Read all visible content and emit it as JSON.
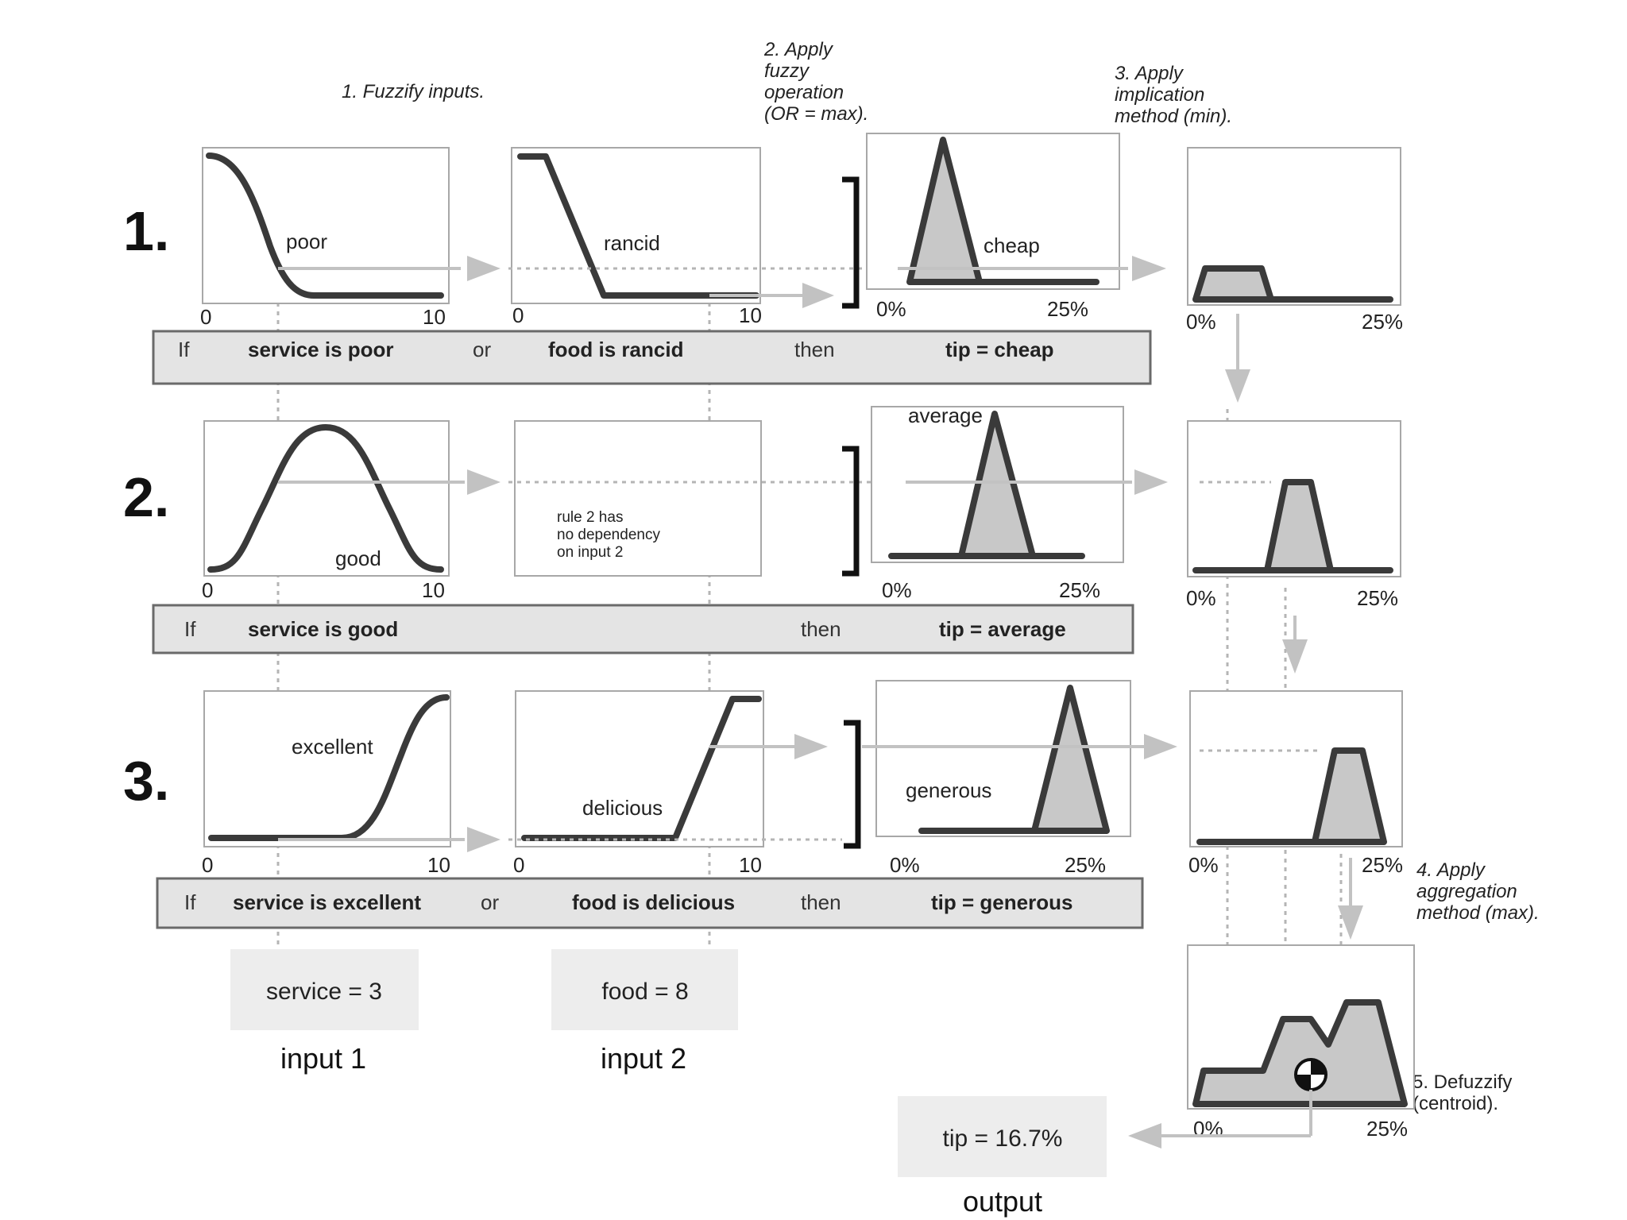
{
  "steps": {
    "s1": "1. Fuzzify inputs.",
    "s2": [
      "2. Apply",
      "fuzzy",
      "operation",
      "(OR = max)."
    ],
    "s3": [
      "3. Apply",
      "implication",
      "method (min)."
    ],
    "s4": [
      "4. Apply",
      "aggregation",
      "method (max)."
    ],
    "s5": [
      "5. Defuzzify",
      "(centroid)."
    ]
  },
  "rows": {
    "r1": {
      "number": "1.",
      "input1_mf": "poor",
      "input2_mf": "rancid",
      "output_mf": "cheap",
      "rule": {
        "if": "If",
        "part1": "service is poor",
        "op": "or",
        "part2": "food is rancid",
        "then": "then",
        "result": "tip = cheap"
      }
    },
    "r2": {
      "number": "2.",
      "input1_mf": "good",
      "note": [
        "rule 2 has",
        "no dependency",
        "on input 2"
      ],
      "output_mf": "average",
      "rule": {
        "if": "If",
        "part1": "service is good",
        "then": "then",
        "result": "tip = average"
      }
    },
    "r3": {
      "number": "3.",
      "input1_mf": "excellent",
      "input2_mf": "delicious",
      "output_mf": "generous",
      "rule": {
        "if": "If",
        "part1": "service is excellent",
        "op": "or",
        "part2": "food is delicious",
        "then": "then",
        "result": "tip = generous"
      }
    }
  },
  "ticks": {
    "in_min": "0",
    "in_max": "10",
    "out_min": "0%",
    "out_max": "25%"
  },
  "inputs": {
    "service": {
      "value_text": "service = 3",
      "caption": "input 1"
    },
    "food": {
      "value_text": "food = 8",
      "caption": "input 2"
    }
  },
  "output": {
    "value_text": "tip = 16.7%",
    "caption": "output"
  },
  "colors": {
    "curve": "#3a3a3a",
    "fill": "#c8c8c8",
    "rule_bar": "#e4e4e4",
    "box_border": "#a8a8a8"
  }
}
